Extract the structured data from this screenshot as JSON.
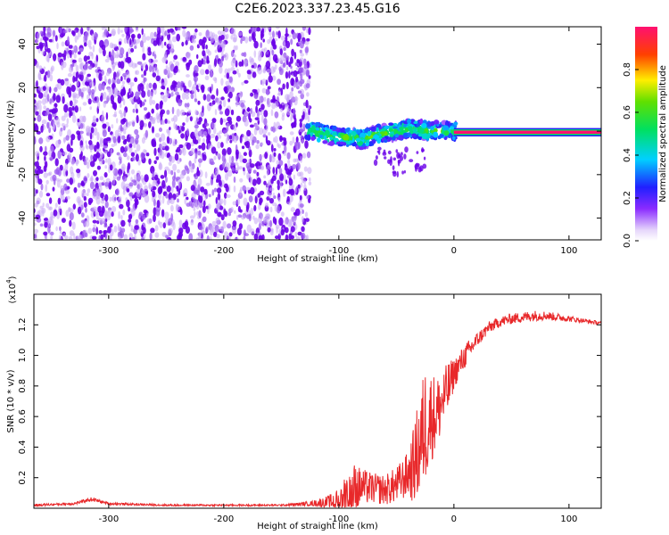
{
  "title": "C2E6.2023.337.23.45.G16",
  "colors": {
    "trace": "#e8282a",
    "scatter_dark": "#6a00e8",
    "scatter_light": "#c9a8f5",
    "axis": "#000000"
  },
  "chart_data": [
    {
      "type": "heatmap",
      "title": "",
      "xlabel": "Height of straight line (km)",
      "ylabel": "Frequency (Hz)",
      "xlim": [
        -365,
        128
      ],
      "ylim": [
        -50,
        48
      ],
      "x_ticks": [
        -300,
        -200,
        -100,
        0,
        100
      ],
      "y_ticks": [
        -40,
        -20,
        0,
        20,
        40
      ],
      "grid": false,
      "colorbar": {
        "label": "Normalized spectral amplitude",
        "range": [
          0.0,
          1.0
        ],
        "ticks": [
          0.0,
          0.2,
          0.4,
          0.6,
          0.8
        ],
        "colormap": "rainbow"
      },
      "regions": [
        {
          "name": "noise",
          "x_range": [
            -365,
            -125
          ],
          "y_range": [
            -50,
            48
          ],
          "amplitude": 0.05
        },
        {
          "name": "signal",
          "x_range": [
            -128,
            2
          ],
          "y_range": [
            -8,
            6
          ],
          "amplitude": 0.4
        },
        {
          "name": "tone",
          "x_range": [
            0,
            128
          ],
          "y_center": -0.5,
          "y_halfwidth": 1.2,
          "amplitude": 1.0
        }
      ],
      "signal_centerline": {
        "x": [
          -128,
          -110,
          -90,
          -80,
          -70,
          -60,
          -50,
          -40,
          -30,
          -20,
          -10,
          0
        ],
        "y": [
          1,
          -2,
          -3,
          -4,
          -2,
          -1,
          0,
          1,
          1,
          0,
          0,
          0
        ]
      }
    },
    {
      "type": "line",
      "title": "",
      "xlabel": "Height of straight line (km)",
      "ylabel": "SNR (10 * v/v)",
      "y_multiplier": "(x10",
      "y_multiplier_exp": "4",
      "xlim": [
        -365,
        128
      ],
      "ylim": [
        0.0,
        1.4
      ],
      "x_ticks": [
        -300,
        -200,
        -100,
        0,
        100
      ],
      "y_ticks": [
        0.2,
        0.4,
        0.6,
        0.8,
        1.0,
        1.2
      ],
      "grid": false,
      "series": [
        {
          "envelope_x": [
            -365,
            -330,
            -315,
            -300,
            -250,
            -200,
            -150,
            -125,
            -110,
            -100,
            -95,
            -90,
            -80,
            -70,
            -60,
            -50,
            -40,
            -35,
            -30,
            -25,
            -20,
            -15,
            -10,
            -5,
            0,
            10,
            20,
            30,
            40,
            50,
            60,
            70,
            80,
            90,
            100,
            110,
            128
          ],
          "envelope_y": [
            0.02,
            0.03,
            0.06,
            0.03,
            0.02,
            0.02,
            0.02,
            0.03,
            0.04,
            0.05,
            0.08,
            0.12,
            0.14,
            0.13,
            0.12,
            0.15,
            0.22,
            0.28,
            0.4,
            0.55,
            0.6,
            0.62,
            0.7,
            0.78,
            0.88,
            1.0,
            1.1,
            1.18,
            1.22,
            1.24,
            1.25,
            1.26,
            1.26,
            1.25,
            1.24,
            1.23,
            1.21
          ],
          "noise_amplitude_y": [
            0.008,
            0.008,
            0.012,
            0.008,
            0.006,
            0.006,
            0.006,
            0.015,
            0.04,
            0.08,
            0.15,
            0.2,
            0.12,
            0.1,
            0.1,
            0.12,
            0.15,
            0.25,
            0.35,
            0.4,
            0.3,
            0.25,
            0.2,
            0.18,
            0.1,
            0.08,
            0.05,
            0.04,
            0.035,
            0.035,
            0.035,
            0.035,
            0.03,
            0.025,
            0.02,
            0.015,
            0.012
          ]
        }
      ]
    }
  ]
}
